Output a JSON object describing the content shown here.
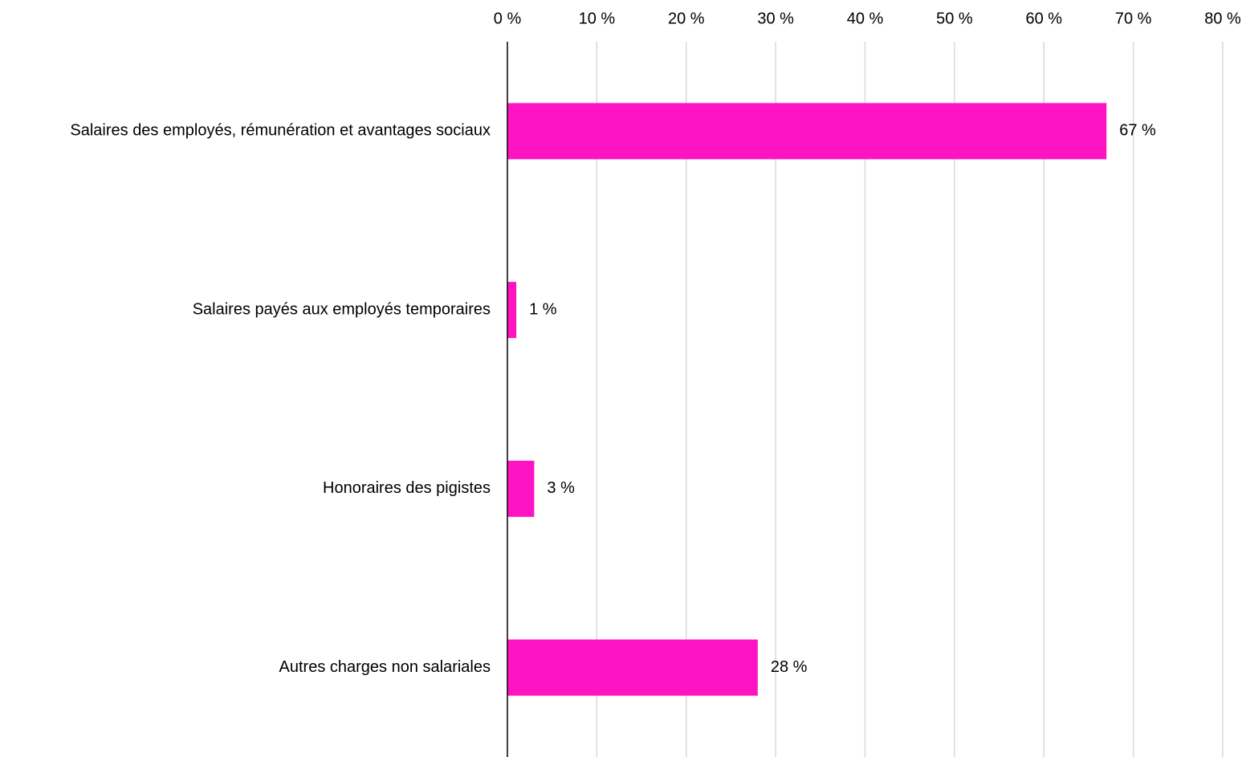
{
  "chart_data": {
    "type": "bar",
    "orientation": "horizontal",
    "categories": [
      "Salaires des employés, rémunération et avantages sociaux",
      "Salaires payés aux employés temporaires",
      "Honoraires des pigistes",
      "Autres charges non salariales"
    ],
    "values": [
      67,
      1,
      3,
      28
    ],
    "value_labels": [
      "67 %",
      "1 %",
      "3 %",
      "28 %"
    ],
    "color": "#ff14c4",
    "xlim": [
      0,
      80
    ],
    "xticks": [
      {
        "value": 0,
        "label": "0 %"
      },
      {
        "value": 10,
        "label": "10 %"
      },
      {
        "value": 20,
        "label": "20 %"
      },
      {
        "value": 30,
        "label": "30 %"
      },
      {
        "value": 40,
        "label": "40 %"
      },
      {
        "value": 50,
        "label": "50 %"
      },
      {
        "value": 60,
        "label": "60 %"
      },
      {
        "value": 70,
        "label": "70 %"
      },
      {
        "value": 80,
        "label": "80 %"
      }
    ],
    "grid": true
  }
}
